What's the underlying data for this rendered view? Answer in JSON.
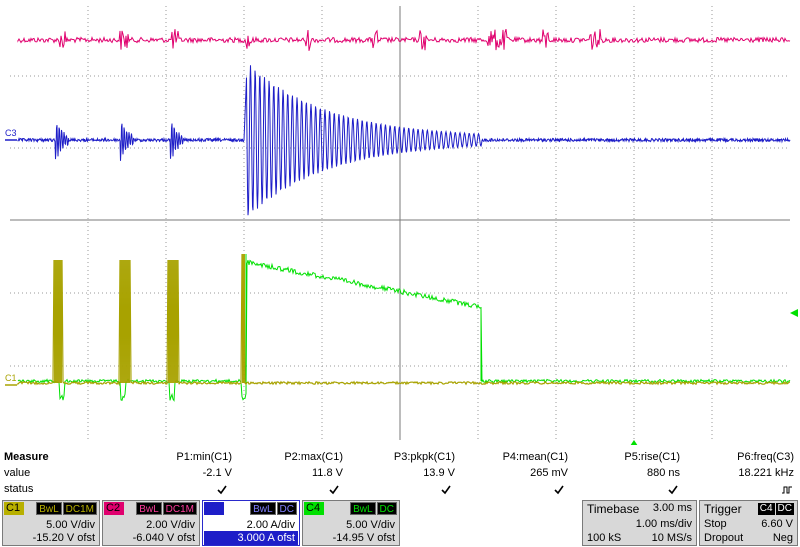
{
  "screen": {
    "channel_marker_c3": "C3",
    "channel_marker_c1": "C1"
  },
  "measure": {
    "header_label": "Measure",
    "value_label": "value",
    "status_label": "status",
    "params": [
      {
        "name": "P1:min(C1)",
        "value": "-2.1 V",
        "status": "ok"
      },
      {
        "name": "P2:max(C1)",
        "value": "11.8 V",
        "status": "ok"
      },
      {
        "name": "P3:pkpk(C1)",
        "value": "13.9 V",
        "status": "ok"
      },
      {
        "name": "P4:mean(C1)",
        "value": "265 mV",
        "status": "ok"
      },
      {
        "name": "P5:rise(C1)",
        "value": "880 ns",
        "status": "ok"
      },
      {
        "name": "P6:freq(C3)",
        "value": "18.221 kHz",
        "status": "jitter"
      }
    ]
  },
  "channels": [
    {
      "id": "C1",
      "bw": "BwL",
      "coupling": "DC1M",
      "scale": "5.00 V/div",
      "offset": "-15.20 V ofst",
      "color": "#b8b000"
    },
    {
      "id": "C2",
      "bw": "BwL",
      "coupling": "DC1M",
      "scale": "2.00 V/div",
      "offset": "-6.040 V ofst",
      "color": "#e0006e"
    },
    {
      "id": "C3",
      "bw": "BwL",
      "coupling": "DC",
      "scale": "2.00 A/div",
      "offset": "3.000 A ofst",
      "color": "#1e1ec8"
    },
    {
      "id": "C4",
      "bw": "BwL",
      "coupling": "DC",
      "scale": "5.00 V/div",
      "offset": "-14.95 V ofst",
      "color": "#00e000"
    }
  ],
  "timebase": {
    "title": "Timebase",
    "delay": "3.00 ms",
    "scale": "1.00 ms/div",
    "samples": "100 kS",
    "rate": "10 MS/s"
  },
  "trigger": {
    "title": "Trigger",
    "source": "C4",
    "coupling": "DC",
    "mode": "Stop",
    "level": "6.60 V",
    "type": "Dropout",
    "slope": "Neg"
  }
}
